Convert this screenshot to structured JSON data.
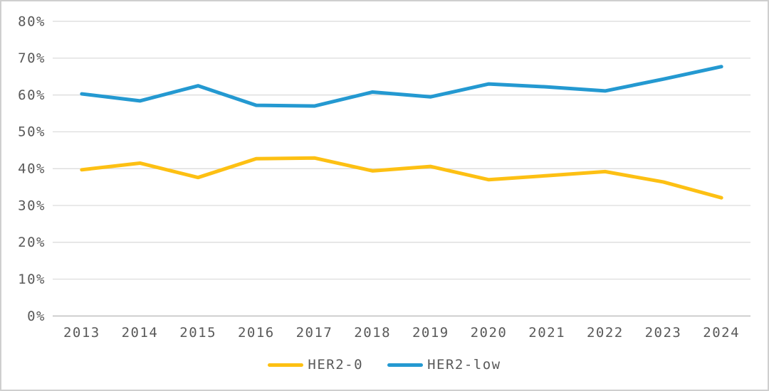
{
  "chart_data": {
    "type": "line",
    "title": "",
    "xlabel": "",
    "ylabel": "",
    "x": [
      2013,
      2014,
      2015,
      2016,
      2017,
      2018,
      2019,
      2020,
      2021,
      2022,
      2023,
      2024
    ],
    "xtick_labels": [
      "2013",
      "2014",
      "2015",
      "2016",
      "2017",
      "2018",
      "2019",
      "2020",
      "2021",
      "2022",
      "2023",
      "2024"
    ],
    "ytick_labels": [
      "0%",
      "10%",
      "20%",
      "30%",
      "40%",
      "50%",
      "60%",
      "70%",
      "80%"
    ],
    "ylim": [
      0,
      80
    ],
    "ytick_step": 10,
    "grid": "horizontal",
    "legend_position": "bottom-center",
    "series": [
      {
        "name": "HER2-0",
        "color": "#fdc013",
        "values": [
          39.7,
          41.5,
          37.6,
          42.7,
          42.9,
          39.4,
          40.6,
          37.0,
          38.1,
          39.2,
          36.4,
          32.1
        ]
      },
      {
        "name": "HER2-low",
        "color": "#2499d1",
        "values": [
          60.3,
          58.4,
          62.5,
          57.2,
          57.0,
          60.8,
          59.5,
          63.0,
          62.2,
          61.1,
          64.3,
          67.7
        ]
      }
    ]
  },
  "colors": {
    "axis_text": "#595959",
    "gridline": "#d9d9d9",
    "zero_axis_line": "#bfbfbf",
    "background": "#ffffff",
    "frame_border": "#cfcfcf"
  }
}
